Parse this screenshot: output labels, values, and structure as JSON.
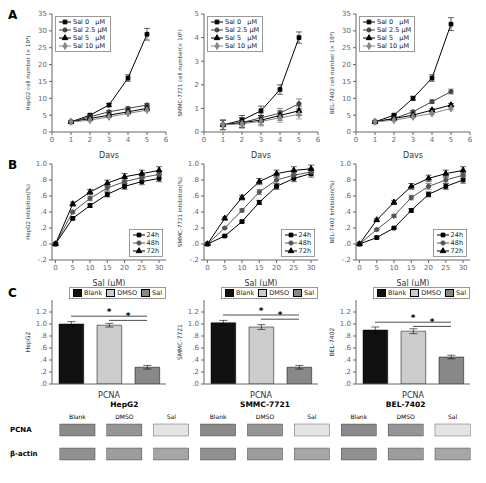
{
  "chart_data": [
    {
      "type": "line",
      "annotations": [
        {
          "text": "A"
        }
      ],
      "xlabel": "Days",
      "ylabel": "HepG2 cell number (× 10⁴)",
      "x": [
        1,
        2,
        3,
        4,
        5
      ],
      "series": [
        {
          "name": "Sal 0   μM",
          "color": "#000000",
          "marker": "square",
          "values": [
            3,
            5,
            8,
            16,
            29
          ],
          "errors": [
            0.2,
            0.3,
            0.48,
            0.96,
            1.74
          ]
        },
        {
          "name": "Sal 2.5 μM",
          "color": "#444444",
          "marker": "circle",
          "values": [
            3,
            4.5,
            6,
            7,
            8
          ],
          "errors": [
            0.2,
            0.27,
            0.36,
            0.42,
            0.48
          ]
        },
        {
          "name": "Sal 5   μM",
          "color": "#000000",
          "marker": "triangle",
          "values": [
            3,
            4,
            5,
            6,
            7
          ],
          "errors": [
            0.2,
            0.24,
            0.3,
            0.36,
            0.42
          ]
        },
        {
          "name": "Sal 10 μM",
          "color": "#888888",
          "marker": "diamond",
          "values": [
            3,
            3.5,
            4.5,
            5.5,
            6.5
          ],
          "errors": [
            0.2,
            0.21,
            0.27,
            0.33,
            0.39
          ]
        }
      ],
      "xlim": [
        0,
        6
      ],
      "xticks": [
        0,
        1,
        2,
        3,
        4,
        5,
        6
      ],
      "ylim": [
        0,
        35
      ],
      "yticks": [
        0,
        5,
        10,
        15,
        20,
        25,
        30,
        35
      ],
      "grid": false,
      "legend": "upper left"
    },
    {
      "type": "line",
      "xlabel": "Days",
      "ylabel": "SMMC-7721 cell number(× 10⁵)",
      "x": [
        1,
        2,
        3,
        4,
        5
      ],
      "series": [
        {
          "name": "Sal 0   μM",
          "color": "#000000",
          "marker": "square",
          "values": [
            0.3,
            0.5,
            0.9,
            1.8,
            4.0
          ],
          "errors": [
            0.2,
            0.2,
            0.2,
            0.2,
            0.24
          ]
        },
        {
          "name": "Sal 2.5 μM",
          "color": "#444444",
          "marker": "circle",
          "values": [
            0.3,
            0.4,
            0.6,
            0.8,
            1.2
          ],
          "errors": [
            0.2,
            0.2,
            0.2,
            0.2,
            0.2
          ]
        },
        {
          "name": "Sal 5   μM",
          "color": "#000000",
          "marker": "triangle",
          "values": [
            0.3,
            0.4,
            0.5,
            0.7,
            0.9
          ],
          "errors": [
            0.2,
            0.2,
            0.2,
            0.2,
            0.2
          ]
        },
        {
          "name": "Sal 10 μM",
          "color": "#888888",
          "marker": "diamond",
          "values": [
            0.3,
            0.35,
            0.45,
            0.6,
            0.75
          ],
          "errors": [
            0.2,
            0.2,
            0.2,
            0.2,
            0.2
          ]
        }
      ],
      "xlim": [
        0,
        6
      ],
      "xticks": [
        0,
        1,
        2,
        3,
        4,
        5,
        6
      ],
      "ylim": [
        0,
        5
      ],
      "yticks": [
        0,
        1,
        2,
        3,
        4,
        5
      ],
      "grid": false,
      "legend": "upper left"
    },
    {
      "type": "line",
      "xlabel": "Days",
      "ylabel": "BEL-7402 cell number (× 10⁴)",
      "x": [
        1,
        2,
        3,
        4,
        5
      ],
      "series": [
        {
          "name": "Sal 0   μM",
          "color": "#000000",
          "marker": "square",
          "values": [
            3,
            5,
            10,
            16,
            32
          ],
          "errors": [
            0.2,
            0.3,
            0.6,
            0.96,
            1.92
          ]
        },
        {
          "name": "Sal 2.5 μM",
          "color": "#444444",
          "marker": "circle",
          "values": [
            3,
            4,
            6,
            9,
            12
          ],
          "errors": [
            0.2,
            0.24,
            0.36,
            0.54,
            0.72
          ]
        },
        {
          "name": "Sal 5   μM",
          "color": "#000000",
          "marker": "triangle",
          "values": [
            3,
            4,
            5,
            6.5,
            8
          ],
          "errors": [
            0.2,
            0.24,
            0.3,
            0.39,
            0.48
          ]
        },
        {
          "name": "Sal 10 μM",
          "color": "#888888",
          "marker": "diamond",
          "values": [
            3,
            3.5,
            4.5,
            5.5,
            7
          ],
          "errors": [
            0.2,
            0.21,
            0.27,
            0.33,
            0.42
          ]
        }
      ],
      "xlim": [
        0,
        6
      ],
      "xticks": [
        0,
        1,
        2,
        3,
        4,
        5,
        6
      ],
      "ylim": [
        0,
        35
      ],
      "yticks": [
        0,
        5,
        10,
        15,
        20,
        25,
        30,
        35
      ],
      "grid": false,
      "legend": "upper left"
    },
    {
      "type": "line",
      "annotations": [
        {
          "text": "B"
        }
      ],
      "xlabel": "Sal (μM)",
      "ylabel": "HepG2 Inhibition(%)",
      "x": [
        0,
        5,
        10,
        15,
        20,
        25,
        30
      ],
      "series": [
        {
          "name": "24h",
          "color": "#000000",
          "marker": "square",
          "values": [
            0.0,
            0.32,
            0.48,
            0.62,
            0.72,
            0.78,
            0.82
          ],
          "errors": [
            0.01,
            0.016,
            0.024,
            0.031,
            0.036,
            0.039,
            0.041
          ]
        },
        {
          "name": "48h",
          "color": "#555555",
          "marker": "circle",
          "values": [
            0.0,
            0.4,
            0.57,
            0.7,
            0.78,
            0.83,
            0.87
          ],
          "errors": [
            0.01,
            0.02,
            0.0285,
            0.035,
            0.039,
            0.0415,
            0.0435
          ]
        },
        {
          "name": "72h",
          "color": "#000000",
          "marker": "triangle",
          "values": [
            0.0,
            0.5,
            0.65,
            0.76,
            0.84,
            0.88,
            0.92
          ],
          "errors": [
            0.01,
            0.025,
            0.0325,
            0.038,
            0.042,
            0.044,
            0.046
          ]
        }
      ],
      "xlim": [
        -1,
        32
      ],
      "xticks": [
        0,
        5,
        10,
        15,
        20,
        25,
        30
      ],
      "ylim": [
        -0.2,
        1.0
      ],
      "yticks": [
        {
          "value": -0.2,
          "label": "-.2"
        },
        {
          "value": 0.0,
          "label": ".0"
        },
        {
          "value": 0.2,
          "label": ".2"
        },
        {
          "value": 0.4,
          "label": ".4"
        },
        {
          "value": 0.6,
          "label": ".6"
        },
        {
          "value": 0.8,
          "label": ".8"
        },
        {
          "value": 1.0,
          "label": "1.0"
        }
      ],
      "grid": false,
      "legend": "lower right"
    },
    {
      "type": "line",
      "xlabel": "Sal (μM)",
      "ylabel": "SMMC-7721 Inhibition(%)",
      "x": [
        0,
        5,
        10,
        15,
        20,
        25,
        30
      ],
      "series": [
        {
          "name": "24h",
          "color": "#000000",
          "marker": "square",
          "values": [
            0.0,
            0.1,
            0.28,
            0.52,
            0.72,
            0.82,
            0.88
          ],
          "errors": [
            0.01,
            0.01,
            0.014,
            0.026,
            0.036,
            0.041,
            0.044
          ]
        },
        {
          "name": "48h",
          "color": "#555555",
          "marker": "circle",
          "values": [
            0.0,
            0.2,
            0.42,
            0.65,
            0.8,
            0.86,
            0.9
          ],
          "errors": [
            0.01,
            0.01,
            0.021,
            0.0325,
            0.04,
            0.043,
            0.045
          ]
        },
        {
          "name": "72h",
          "color": "#000000",
          "marker": "triangle",
          "values": [
            0.0,
            0.32,
            0.58,
            0.78,
            0.88,
            0.92,
            0.94
          ],
          "errors": [
            0.01,
            0.016,
            0.029,
            0.039,
            0.044,
            0.046,
            0.047
          ]
        }
      ],
      "xlim": [
        -1,
        32
      ],
      "xticks": [
        0,
        5,
        10,
        15,
        20,
        25,
        30
      ],
      "ylim": [
        -0.2,
        1.0
      ],
      "yticks": [
        {
          "value": -0.2,
          "label": "-.2"
        },
        {
          "value": 0.0,
          "label": ".0"
        },
        {
          "value": 0.2,
          "label": ".2"
        },
        {
          "value": 0.4,
          "label": ".4"
        },
        {
          "value": 0.6,
          "label": ".6"
        },
        {
          "value": 0.8,
          "label": ".8"
        },
        {
          "value": 1.0,
          "label": "1.0"
        }
      ],
      "grid": false,
      "legend": "lower right"
    },
    {
      "type": "line",
      "xlabel": "Sal (μM)",
      "ylabel": "BEL-7402 Inhibition(%)",
      "x": [
        0,
        5,
        10,
        15,
        20,
        25,
        30
      ],
      "series": [
        {
          "name": "24h",
          "color": "#000000",
          "marker": "square",
          "values": [
            0.0,
            0.08,
            0.2,
            0.42,
            0.62,
            0.72,
            0.8
          ],
          "errors": [
            0.01,
            0.01,
            0.01,
            0.021,
            0.031,
            0.036,
            0.04
          ]
        },
        {
          "name": "48h",
          "color": "#555555",
          "marker": "circle",
          "values": [
            0.0,
            0.18,
            0.35,
            0.58,
            0.72,
            0.8,
            0.86
          ],
          "errors": [
            0.01,
            0.01,
            0.0175,
            0.029,
            0.036,
            0.04,
            0.043
          ]
        },
        {
          "name": "72h",
          "color": "#000000",
          "marker": "triangle",
          "values": [
            0.0,
            0.3,
            0.52,
            0.72,
            0.82,
            0.88,
            0.92
          ],
          "errors": [
            0.01,
            0.015,
            0.026,
            0.036,
            0.041,
            0.044,
            0.046
          ]
        }
      ],
      "xlim": [
        -1,
        32
      ],
      "xticks": [
        0,
        5,
        10,
        15,
        20,
        25,
        30
      ],
      "ylim": [
        -0.2,
        1.0
      ],
      "yticks": [
        {
          "value": -0.2,
          "label": "-.2"
        },
        {
          "value": 0.0,
          "label": ".0"
        },
        {
          "value": 0.2,
          "label": ".2"
        },
        {
          "value": 0.4,
          "label": ".4"
        },
        {
          "value": 0.6,
          "label": ".6"
        },
        {
          "value": 0.8,
          "label": ".8"
        },
        {
          "value": 1.0,
          "label": "1.0"
        }
      ],
      "grid": false,
      "legend": "lower right"
    },
    {
      "type": "bar",
      "annotations": [
        {
          "text": "C"
        },
        {
          "text": "*",
          "from": "Blank",
          "to": "Sal"
        },
        {
          "text": "*",
          "from": "DMSO",
          "to": "Sal"
        }
      ],
      "xlabel": "PCNA",
      "ylabel": "HepG2",
      "categories": [
        "Blank",
        "DMSO",
        "Sal"
      ],
      "values": [
        1.0,
        0.98,
        0.28
      ],
      "errors": [
        0.04,
        0.03,
        0.03
      ],
      "colors": [
        "#111111",
        "#cccccc",
        "#888888"
      ],
      "ylim": [
        0.0,
        1.4
      ],
      "yticks": [
        {
          "value": 0.0,
          "label": ".0"
        },
        {
          "value": 0.2,
          "label": ".2"
        },
        {
          "value": 0.4,
          "label": ".4"
        },
        {
          "value": 0.6,
          "label": ".6"
        },
        {
          "value": 0.8,
          "label": ".8"
        },
        {
          "value": 1.0,
          "label": "1.0"
        },
        {
          "value": 1.2,
          "label": "1.2"
        }
      ],
      "tick_labels": "y",
      "grid": false,
      "legend": "upper right"
    },
    {
      "type": "bar",
      "annotations": [
        {
          "text": "*",
          "from": "Blank",
          "to": "Sal"
        },
        {
          "text": "*",
          "from": "DMSO",
          "to": "Sal"
        }
      ],
      "xlabel": "PCNA",
      "ylabel": "SMMC-7721",
      "categories": [
        "Blank",
        "DMSO",
        "Sal"
      ],
      "values": [
        1.02,
        0.95,
        0.28
      ],
      "errors": [
        0.04,
        0.04,
        0.03
      ],
      "colors": [
        "#111111",
        "#cccccc",
        "#888888"
      ],
      "ylim": [
        0.0,
        1.4
      ],
      "yticks": [
        {
          "value": 0.0,
          "label": ".0"
        },
        {
          "value": 0.2,
          "label": ".2"
        },
        {
          "value": 0.4,
          "label": ".4"
        },
        {
          "value": 0.6,
          "label": ".6"
        },
        {
          "value": 0.8,
          "label": ".8"
        },
        {
          "value": 1.0,
          "label": "1.0"
        },
        {
          "value": 1.2,
          "label": "1.2"
        }
      ],
      "tick_labels": "y",
      "grid": false,
      "legend": "upper right"
    },
    {
      "type": "bar",
      "annotations": [
        {
          "text": "*",
          "from": "Blank",
          "to": "Sal"
        },
        {
          "text": "*",
          "from": "DMSO",
          "to": "Sal"
        }
      ],
      "xlabel": "PCNA",
      "ylabel": "BEL-7402",
      "categories": [
        "Blank",
        "DMSO",
        "Sal"
      ],
      "values": [
        0.9,
        0.88,
        0.45
      ],
      "errors": [
        0.05,
        0.04,
        0.03
      ],
      "colors": [
        "#111111",
        "#cccccc",
        "#888888"
      ],
      "ylim": [
        0.0,
        1.4
      ],
      "yticks": [
        {
          "value": 0.0,
          "label": ".0"
        },
        {
          "value": 0.2,
          "label": ".2"
        },
        {
          "value": 0.4,
          "label": ".4"
        },
        {
          "value": 0.6,
          "label": ".6"
        },
        {
          "value": 0.8,
          "label": ".8"
        },
        {
          "value": 1.0,
          "label": "1.0"
        },
        {
          "value": 1.2,
          "label": "1.2"
        }
      ],
      "tick_labels": "y",
      "grid": false,
      "legend": "upper right"
    },
    {
      "type": "blot",
      "groups": [
        "HepG2",
        "SMMC-7721",
        "BEL-7402"
      ],
      "categories": [
        "Blank",
        "DMSO",
        "Sal"
      ],
      "series": [
        {
          "name": "PCNA",
          "values": [
            0.85,
            0.78,
            0.2
          ]
        },
        {
          "name": "β-actin",
          "values": [
            0.82,
            0.72,
            0.65
          ]
        }
      ]
    }
  ]
}
